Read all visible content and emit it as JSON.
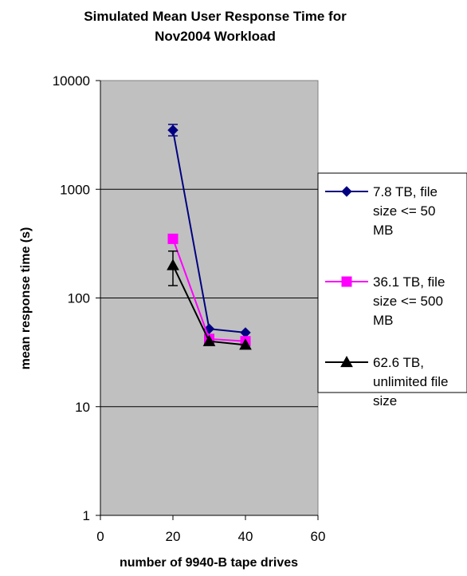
{
  "chart_data": {
    "type": "line",
    "title_lines": [
      "Simulated Mean User Response Time for",
      "Nov2004 Workload"
    ],
    "xlabel": "number of 9940-B tape drives",
    "ylabel": "mean response time (s)",
    "xlim": [
      0,
      60
    ],
    "ylim": [
      1,
      10000
    ],
    "yscale": "log",
    "x_ticks": [
      "0",
      "20",
      "40",
      "60"
    ],
    "y_ticks": [
      "1",
      "10",
      "100",
      "1000",
      "10000"
    ],
    "grid": "horizontal",
    "plot_background": "#c0c0c0",
    "legend_position": "right",
    "series": [
      {
        "name_lines": [
          "7.8 TB, file",
          "size <= 50",
          "MB"
        ],
        "color": "#000080",
        "marker": "diamond",
        "x": [
          20,
          30,
          40
        ],
        "y": [
          3500,
          52,
          48
        ],
        "error": [
          [
            3100,
            3950
          ],
          null,
          null
        ]
      },
      {
        "name_lines": [
          "36.1 TB, file",
          "size <= 500",
          "MB"
        ],
        "color": "#ff00ff",
        "marker": "square",
        "x": [
          20,
          30,
          40
        ],
        "y": [
          350,
          42,
          40
        ],
        "error": [
          null,
          null,
          null
        ]
      },
      {
        "name_lines": [
          "62.6 TB,",
          "unlimited file",
          "size"
        ],
        "color": "#000000",
        "marker": "triangle",
        "x": [
          20,
          30,
          40
        ],
        "y": [
          200,
          40,
          37
        ],
        "error": [
          [
            130,
            270
          ],
          null,
          null
        ]
      }
    ]
  }
}
